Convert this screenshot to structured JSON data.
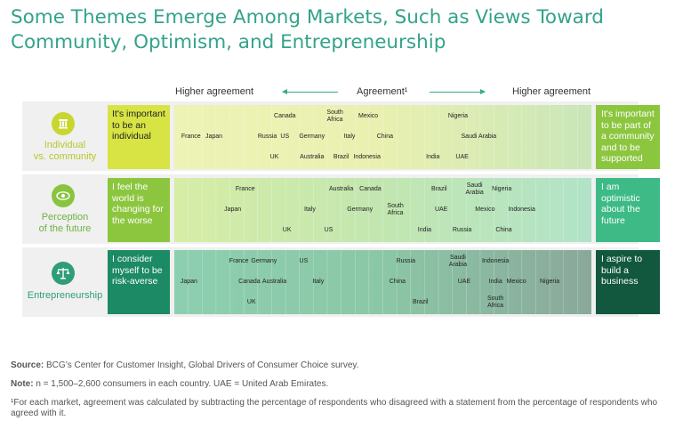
{
  "title_lines": [
    "Some Themes Emerge Among Markets, Such as Views Toward",
    "Community, Optimism, and Entrepreneurship"
  ],
  "header": {
    "left": "Higher agreement",
    "center": "Agreement¹",
    "right": "Higher agreement"
  },
  "colors": {
    "accent": "#33a38a"
  },
  "chart_data": {
    "type": "scatter",
    "rows": [
      {
        "label_lines": [
          "Individual",
          "vs. community"
        ],
        "icon": "pillar-icon",
        "left_statement": "It's important to be an individual",
        "right_statement": "It's important to be part of a community and to be supported",
        "markets": [
          {
            "name": "France",
            "x": 0.04,
            "y": 0.5
          },
          {
            "name": "Japan",
            "x": 0.095,
            "y": 0.5
          },
          {
            "name": "Russia",
            "x": 0.223,
            "y": 0.5
          },
          {
            "name": "US",
            "x": 0.265,
            "y": 0.5
          },
          {
            "name": "Canada",
            "x": 0.265,
            "y": 0.18
          },
          {
            "name": "UK",
            "x": 0.24,
            "y": 0.82
          },
          {
            "name": "Germany",
            "x": 0.33,
            "y": 0.5
          },
          {
            "name": "Australia",
            "x": 0.33,
            "y": 0.82
          },
          {
            "name": "South Africa",
            "x": 0.385,
            "y": 0.18
          },
          {
            "name": "Brazil",
            "x": 0.4,
            "y": 0.82
          },
          {
            "name": "Italy",
            "x": 0.42,
            "y": 0.5
          },
          {
            "name": "Indonesia",
            "x": 0.462,
            "y": 0.82
          },
          {
            "name": "Mexico",
            "x": 0.465,
            "y": 0.18
          },
          {
            "name": "China",
            "x": 0.505,
            "y": 0.5
          },
          {
            "name": "India",
            "x": 0.62,
            "y": 0.82
          },
          {
            "name": "UAE",
            "x": 0.69,
            "y": 0.82
          },
          {
            "name": "Nigeria",
            "x": 0.68,
            "y": 0.18
          },
          {
            "name": "Saudi Arabia",
            "x": 0.73,
            "y": 0.5
          }
        ]
      },
      {
        "label_lines": [
          "Perception",
          "of the future"
        ],
        "icon": "eye-icon",
        "left_statement": "I feel the world is changing for the worse",
        "right_statement": "I am optimistic about the future",
        "markets": [
          {
            "name": "France",
            "x": 0.17,
            "y": 0.18
          },
          {
            "name": "Japan",
            "x": 0.14,
            "y": 0.5
          },
          {
            "name": "UK",
            "x": 0.27,
            "y": 0.82
          },
          {
            "name": "Italy",
            "x": 0.325,
            "y": 0.5
          },
          {
            "name": "US",
            "x": 0.37,
            "y": 0.82
          },
          {
            "name": "Australia",
            "x": 0.4,
            "y": 0.18
          },
          {
            "name": "Canada",
            "x": 0.47,
            "y": 0.18
          },
          {
            "name": "Germany",
            "x": 0.445,
            "y": 0.5
          },
          {
            "name": "South Africa",
            "x": 0.53,
            "y": 0.5
          },
          {
            "name": "India",
            "x": 0.6,
            "y": 0.82
          },
          {
            "name": "Brazil",
            "x": 0.635,
            "y": 0.18
          },
          {
            "name": "UAE",
            "x": 0.64,
            "y": 0.5
          },
          {
            "name": "Russia",
            "x": 0.69,
            "y": 0.82
          },
          {
            "name": "Saudi Arabia",
            "x": 0.72,
            "y": 0.18
          },
          {
            "name": "Nigeria",
            "x": 0.785,
            "y": 0.18
          },
          {
            "name": "Mexico",
            "x": 0.745,
            "y": 0.5
          },
          {
            "name": "China",
            "x": 0.79,
            "y": 0.82
          },
          {
            "name": "Indonesia",
            "x": 0.833,
            "y": 0.5
          }
        ]
      },
      {
        "label_lines": [
          "Entrepreneurship"
        ],
        "icon": "scale-icon",
        "left_statement": "I consider myself to be risk-averse",
        "right_statement": "I aspire to build a business",
        "markets": [
          {
            "name": "Japan",
            "x": 0.035,
            "y": 0.5
          },
          {
            "name": "France",
            "x": 0.155,
            "y": 0.18
          },
          {
            "name": "Germany",
            "x": 0.215,
            "y": 0.18
          },
          {
            "name": "Canada",
            "x": 0.18,
            "y": 0.5
          },
          {
            "name": "Australia",
            "x": 0.24,
            "y": 0.5
          },
          {
            "name": "UK",
            "x": 0.185,
            "y": 0.82
          },
          {
            "name": "US",
            "x": 0.31,
            "y": 0.18
          },
          {
            "name": "Italy",
            "x": 0.345,
            "y": 0.5
          },
          {
            "name": "Russia",
            "x": 0.555,
            "y": 0.18
          },
          {
            "name": "China",
            "x": 0.535,
            "y": 0.5
          },
          {
            "name": "Brazil",
            "x": 0.59,
            "y": 0.82
          },
          {
            "name": "Saudi Arabia",
            "x": 0.68,
            "y": 0.18
          },
          {
            "name": "UAE",
            "x": 0.695,
            "y": 0.5
          },
          {
            "name": "Indonesia",
            "x": 0.77,
            "y": 0.18
          },
          {
            "name": "India",
            "x": 0.77,
            "y": 0.5
          },
          {
            "name": "Mexico",
            "x": 0.82,
            "y": 0.5
          },
          {
            "name": "South Africa",
            "x": 0.77,
            "y": 0.82
          },
          {
            "name": "Nigeria",
            "x": 0.9,
            "y": 0.5
          }
        ]
      }
    ]
  },
  "footer": {
    "source_label": "Source:",
    "source_text": " BCG’s Center for Customer Insight, Global Drivers of Consumer Choice survey.",
    "note_label": "Note:",
    "note_text": " n = 1,500–2,600 consumers in each country. UAE = United Arab Emirates.",
    "footnote": "¹For each market, agreement was calculated by subtracting the percentage of respondents who disagreed with a statement from the percentage of respondents who agreed with it."
  }
}
